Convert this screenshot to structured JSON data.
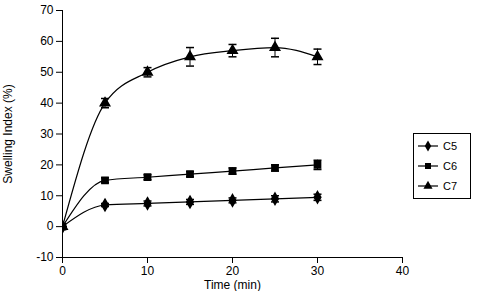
{
  "chart_data": {
    "type": "line",
    "xlabel": "Time (min)",
    "ylabel": "Swelling Index (%)",
    "x": [
      0,
      5,
      10,
      15,
      20,
      25,
      30
    ],
    "xlim": [
      0,
      40
    ],
    "xticks": [
      0,
      10,
      20,
      30,
      40
    ],
    "ylim": [
      -10,
      70
    ],
    "yticks": [
      -10,
      0,
      10,
      20,
      30,
      40,
      50,
      60,
      70
    ],
    "grid": false,
    "legend": "right",
    "series": [
      {
        "name": "C5",
        "color": "#000000",
        "marker": "diamond",
        "line_style": "solid",
        "values": [
          0,
          7,
          7.5,
          8,
          8.5,
          9,
          9.5
        ],
        "errors": [
          0,
          0.5,
          0.8,
          0.8,
          0.8,
          1,
          1
        ]
      },
      {
        "name": "C6",
        "color": "#000000",
        "marker": "square",
        "line_style": "solid",
        "values": [
          0,
          15,
          16,
          17,
          18,
          19,
          20
        ],
        "errors": [
          0,
          0.8,
          0.8,
          0.8,
          1,
          1,
          1.5
        ]
      },
      {
        "name": "C7",
        "color": "#000000",
        "marker": "triangle",
        "line_style": "solid",
        "values": [
          0,
          40,
          50,
          55,
          57,
          58,
          55
        ],
        "errors": [
          0,
          1.5,
          1.5,
          3,
          2,
          3,
          2.5
        ]
      }
    ]
  }
}
